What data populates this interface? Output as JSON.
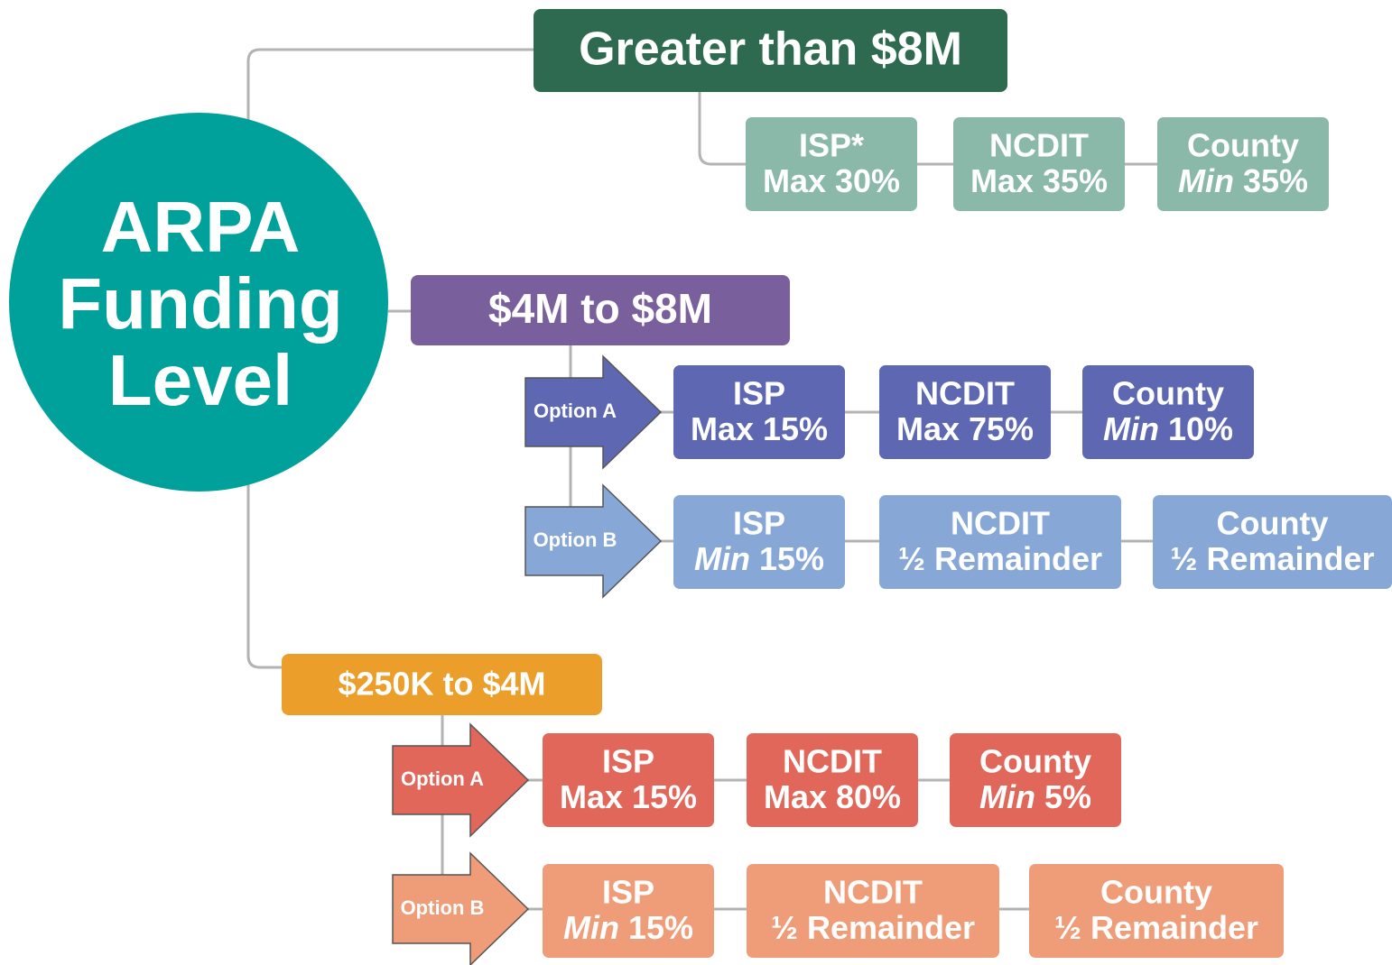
{
  "center": {
    "lines": [
      "ARPA",
      "Funding",
      "Level"
    ],
    "color": "#00a19b"
  },
  "tiers": [
    {
      "label": "Greater than $8M",
      "color": "#2d6a4f",
      "cell_color": "#8ab8a9",
      "cells": [
        {
          "label": "ISP*",
          "detail": [
            {
              "text": "Max 30%"
            }
          ]
        },
        {
          "label": "NCDIT",
          "detail": [
            {
              "text": "Max 35%"
            }
          ]
        },
        {
          "label": "County",
          "detail": [
            {
              "text": "Min",
              "italic": true
            },
            {
              "text": "35%"
            }
          ]
        }
      ]
    },
    {
      "label": "$4M to $8M",
      "color": "#7a5f9d",
      "options": [
        {
          "label": "Option A",
          "color": "#5d67b2",
          "cells": [
            {
              "label": "ISP",
              "detail": [
                {
                  "text": "Max 15%"
                }
              ]
            },
            {
              "label": "NCDIT",
              "detail": [
                {
                  "text": "Max 75%"
                }
              ]
            },
            {
              "label": "County",
              "detail": [
                {
                  "text": "Min",
                  "italic": true
                },
                {
                  "text": "10%"
                }
              ]
            }
          ]
        },
        {
          "label": "Option B",
          "color": "#87a8d7",
          "cells": [
            {
              "label": "ISP",
              "detail": [
                {
                  "text": "Min",
                  "italic": true
                },
                {
                  "text": "15%"
                }
              ]
            },
            {
              "label": "NCDIT",
              "detail": [
                {
                  "text": "½ Remainder"
                }
              ]
            },
            {
              "label": "County",
              "detail": [
                {
                  "text": "½ Remainder"
                }
              ]
            }
          ]
        }
      ]
    },
    {
      "label": "$250K to $4M",
      "color": "#eb9e2a",
      "options": [
        {
          "label": "Option A",
          "color": "#e0675a",
          "cells": [
            {
              "label": "ISP",
              "detail": [
                {
                  "text": "Max 15%"
                }
              ]
            },
            {
              "label": "NCDIT",
              "detail": [
                {
                  "text": "Max 80%"
                }
              ]
            },
            {
              "label": "County",
              "detail": [
                {
                  "text": "Min",
                  "italic": true
                },
                {
                  "text": "5%"
                }
              ]
            }
          ]
        },
        {
          "label": "Option B",
          "color": "#ef9c79",
          "cells": [
            {
              "label": "ISP",
              "detail": [
                {
                  "text": "Min",
                  "italic": true
                },
                {
                  "text": "15%"
                }
              ]
            },
            {
              "label": "NCDIT",
              "detail": [
                {
                  "text": "½ Remainder"
                }
              ]
            },
            {
              "label": "County",
              "detail": [
                {
                  "text": "½ Remainder"
                }
              ]
            }
          ]
        }
      ]
    }
  ]
}
